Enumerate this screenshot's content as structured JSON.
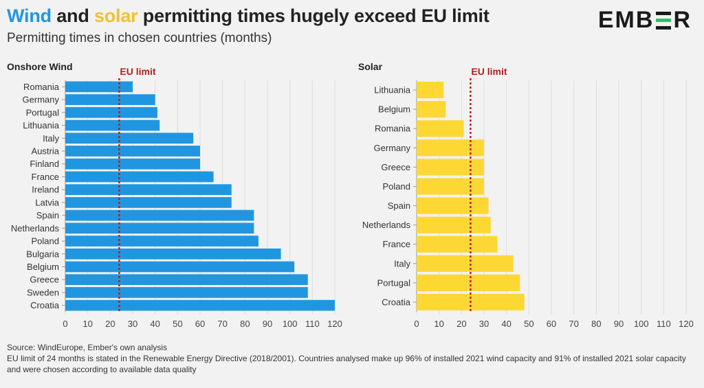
{
  "header": {
    "title_part1": "Wind",
    "title_part2": " and ",
    "title_part3": "solar",
    "title_part4": " permitting times hugely exceed EU limit",
    "subtitle": "Permitting times in chosen countries (months)",
    "logo_left": "EMB",
    "logo_right": "R"
  },
  "colors": {
    "wind": "#2196e0",
    "solar": "#fdd835",
    "limit": "#b71c1c"
  },
  "chart_data": [
    {
      "type": "bar",
      "orientation": "horizontal",
      "title": "Onshore Wind",
      "categories": [
        "Romania",
        "Germany",
        "Portugal",
        "Lithuania",
        "Italy",
        "Austria",
        "Finland",
        "France",
        "Ireland",
        "Latvia",
        "Spain",
        "Netherlands",
        "Poland",
        "Bulgaria",
        "Belgium",
        "Greece",
        "Sweden",
        "Croatia"
      ],
      "values": [
        30,
        40,
        41,
        42,
        57,
        60,
        60,
        66,
        74,
        74,
        84,
        84,
        86,
        96,
        102,
        108,
        108,
        120
      ],
      "xlim": [
        0,
        120
      ],
      "xticks": [
        0,
        10,
        20,
        30,
        40,
        50,
        60,
        70,
        80,
        90,
        100,
        110,
        120
      ],
      "reference_line": {
        "value": 24,
        "label": "EU limit"
      }
    },
    {
      "type": "bar",
      "orientation": "horizontal",
      "title": "Solar",
      "categories": [
        "Lithuania",
        "Belgium",
        "Romania",
        "Germany",
        "Greece",
        "Poland",
        "Spain",
        "Netherlands",
        "France",
        "Italy",
        "Portugal",
        "Croatia"
      ],
      "values": [
        12,
        13,
        21,
        30,
        30,
        30,
        32,
        33,
        36,
        43,
        46,
        48
      ],
      "xlim": [
        0,
        120
      ],
      "xticks": [
        0,
        10,
        20,
        30,
        40,
        50,
        60,
        70,
        80,
        90,
        100,
        110,
        120
      ],
      "reference_line": {
        "value": 24,
        "label": "EU limit"
      }
    }
  ],
  "footer": {
    "source": "Source: WindEurope, Ember's own analysis",
    "note": "EU limit of 24 months is stated in the Renewable Energy Directive (2018/2001). Countries analysed make up 96% of installed 2021 wind capacity and 91% of installed 2021 solar capacity and were chosen according to available data quality"
  }
}
